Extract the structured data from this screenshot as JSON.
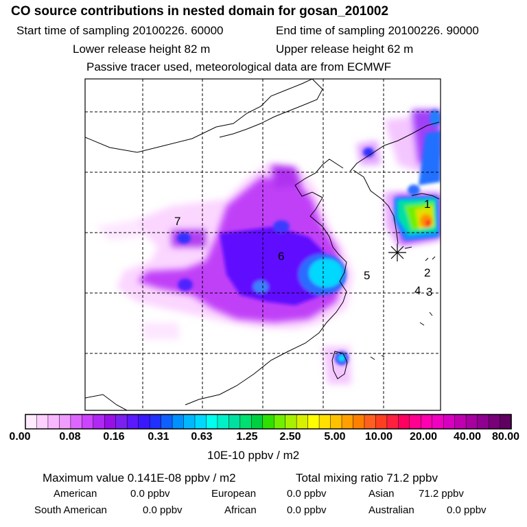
{
  "header": {
    "title": "CO  source contributions in nested domain for gosan_201002",
    "start_time": "Start time of sampling 20100226. 60000",
    "end_time": "End time of sampling 20100226. 90000",
    "lower_height": "Lower release height   82 m",
    "upper_height": "Upper release height   62 m",
    "tracer_note": "Passive tracer used, meteorological data are from ECMWF"
  },
  "markers": [
    "1",
    "2",
    "3",
    "4",
    "5",
    "6",
    "7"
  ],
  "colors": {
    "low": "#ffd6ff",
    "violet": "#b000f0",
    "blue": "#3020ff",
    "cyan": "#00e5ff",
    "green": "#00e060",
    "yellow": "#ffe000",
    "orange": "#ff8000",
    "red": "#ff0040",
    "magenta": "#ff00b0",
    "dark": "#600060"
  },
  "colorbar": {
    "labels": [
      "0.00",
      "0.08",
      "0.16",
      "0.31",
      "0.63",
      "1.25",
      "2.50",
      "5.00",
      "10.00",
      "20.00",
      "40.00",
      "80.00"
    ],
    "units": "10E-10 ppbv / m2"
  },
  "summary": {
    "max_value": "Maximum value  0.141E-08 ppbv / m2",
    "total": "Total mixing ratio       71.2 ppbv",
    "american_label": "American",
    "american_value": "0.0 ppbv",
    "european_label": "European",
    "european_value": "0.0 ppbv",
    "asian_label": "Asian",
    "asian_value": "71.2 ppbv",
    "south_american_label": "South American",
    "south_american_value": "0.0 ppbv",
    "african_label": "African",
    "african_value": "0.0 ppbv",
    "australian_label": "Australian",
    "australian_value": "0.0 ppbv"
  }
}
